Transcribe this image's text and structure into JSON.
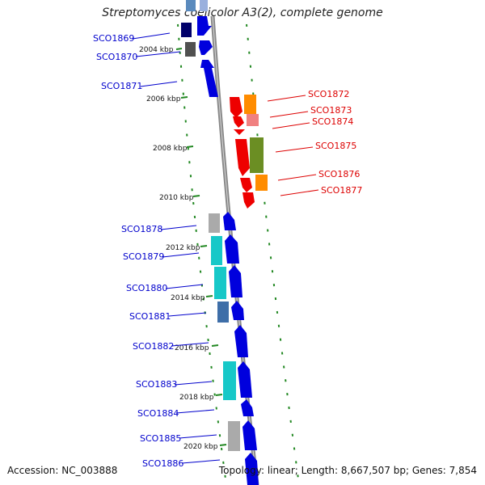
{
  "title": "Streptomyces coelicolor A3(2), complete genome",
  "accession": "Accession: NC_003888",
  "summary": "Topology: linear; Length: 8,667,507 bp; Genes: 7,854",
  "colors": {
    "backbone": "#888888",
    "tick": "#228822",
    "forward_label": "#0000cc",
    "reverse_label": "#dd0000"
  },
  "kbp_marks": [
    {
      "label": "2004 kbp"
    },
    {
      "label": "2006 kbp"
    },
    {
      "label": "2008 kbp"
    },
    {
      "label": "2010 kbp"
    },
    {
      "label": "2012 kbp"
    },
    {
      "label": "2014 kbp"
    },
    {
      "label": "2016 kbp"
    },
    {
      "label": "2018 kbp"
    },
    {
      "label": "2020 kbp"
    }
  ],
  "genes_forward": [
    {
      "id": "SCO1869"
    },
    {
      "id": "SCO1870"
    },
    {
      "id": "SCO1871"
    },
    {
      "id": "SCO1878"
    },
    {
      "id": "SCO1879"
    },
    {
      "id": "SCO1880"
    },
    {
      "id": "SCO1881"
    },
    {
      "id": "SCO1882"
    },
    {
      "id": "SCO1883"
    },
    {
      "id": "SCO1884"
    },
    {
      "id": "SCO1885"
    },
    {
      "id": "SCO1886"
    }
  ],
  "genes_reverse": [
    {
      "id": "SCO1872"
    },
    {
      "id": "SCO1873"
    },
    {
      "id": "SCO1874"
    },
    {
      "id": "SCO1875"
    },
    {
      "id": "SCO1876"
    },
    {
      "id": "SCO1877"
    }
  ]
}
